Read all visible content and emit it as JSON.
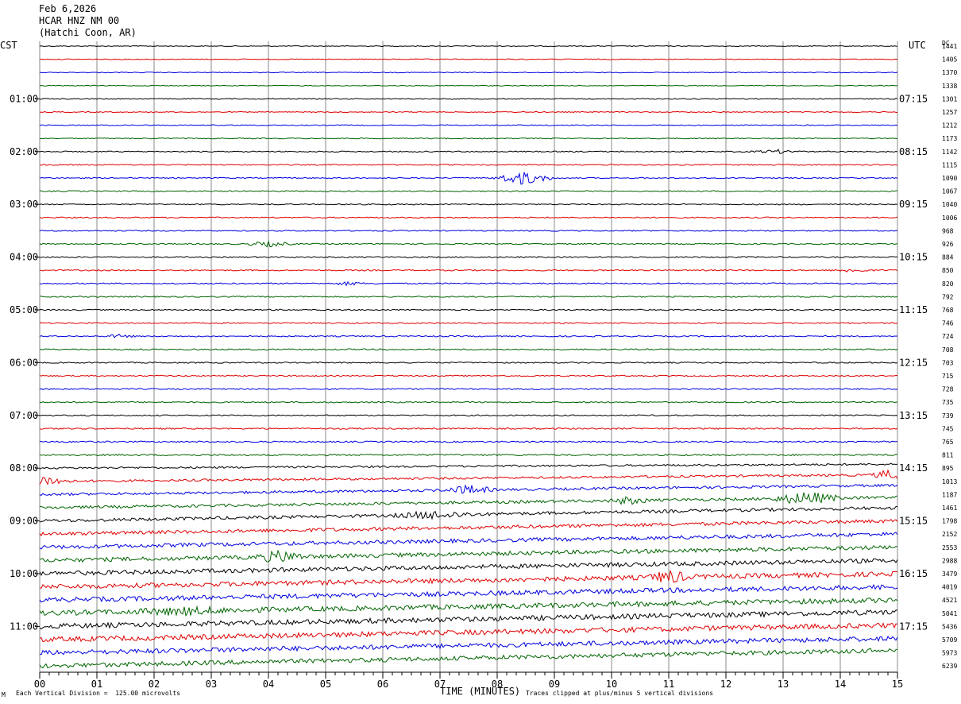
{
  "header": {
    "date": "Feb 6,2026",
    "station": "HCAR HNZ NM 00",
    "location": "(Hatchi Coon, AR)"
  },
  "left_tz": "CST",
  "right_tz": "UTC",
  "dc_label": "DC",
  "footer": {
    "scale": "Each Vertical Division =  125.00 microvolts",
    "clip": "Traces clipped at plus/minus 5 vertical divisions",
    "corner_mark": "M"
  },
  "chart_data": {
    "type": "line",
    "title": "HCAR HNZ NM 00",
    "xlabel": "TIME (MINUTES)",
    "ylabel": "",
    "x_ticks": [
      "00",
      "01",
      "02",
      "03",
      "04",
      "05",
      "06",
      "07",
      "08",
      "09",
      "10",
      "11",
      "12",
      "13",
      "14",
      "15"
    ],
    "xlim": [
      0,
      15
    ],
    "grid": true,
    "trace_minutes": 15,
    "trace_colors": [
      "#000000",
      "#e00000",
      "#0000e0",
      "#006400"
    ],
    "left_hour_labels": [
      "01:00",
      "02:00",
      "03:00",
      "04:00",
      "05:00",
      "06:00",
      "07:00",
      "08:00",
      "09:00",
      "10:00",
      "11:00"
    ],
    "right_hour_labels": [
      "07:15",
      "08:15",
      "09:15",
      "10:15",
      "11:15",
      "12:15",
      "13:15",
      "14:15",
      "15:15",
      "16:15",
      "17:15"
    ],
    "dc_offsets": [
      1441,
      1405,
      1370,
      1338,
      1301,
      1257,
      1212,
      1173,
      1142,
      1115,
      1090,
      1067,
      1040,
      1006,
      968,
      926,
      884,
      850,
      820,
      792,
      768,
      746,
      724,
      708,
      703,
      715,
      728,
      735,
      739,
      745,
      765,
      811,
      895,
      1013,
      1187,
      1461,
      1798,
      2152,
      2553,
      2988,
      3479,
      4019,
      4521,
      5041,
      5436,
      5709,
      5973,
      6239
    ],
    "noise_level": [
      0.5,
      0.5,
      0.5,
      0.5,
      0.6,
      0.6,
      0.6,
      0.6,
      0.7,
      0.7,
      0.7,
      0.7,
      0.7,
      0.7,
      0.7,
      0.8,
      0.8,
      0.8,
      0.8,
      0.8,
      0.8,
      0.8,
      0.8,
      0.8,
      0.8,
      0.8,
      0.8,
      0.8,
      0.8,
      0.9,
      0.9,
      1.0,
      1.2,
      1.4,
      1.6,
      1.8,
      2.0,
      2.2,
      2.4,
      2.6,
      2.8,
      3.0,
      3.0,
      3.2,
      3.2,
      3.2,
      3.0,
      2.8
    ],
    "drift_divisions": [
      0,
      0,
      0,
      0,
      0,
      0,
      0,
      0,
      0,
      0,
      0,
      0,
      0,
      0,
      0,
      0,
      0,
      0,
      0,
      0,
      0,
      0,
      0,
      0,
      0,
      0,
      0,
      0,
      0,
      0,
      0,
      0,
      -0.3,
      -0.5,
      -0.7,
      -0.8,
      -1.0,
      -1.0,
      -1.0,
      -1.0,
      -1.0,
      -1.0,
      -1.0,
      -1.0,
      -1.1,
      -1.1,
      -1.1,
      -1.2
    ],
    "events": [
      {
        "trace": 10,
        "minute": 8.45,
        "amplitude": 8,
        "duration": 0.6
      },
      {
        "trace": 8,
        "minute": 12.9,
        "amplitude": 2,
        "duration": 0.5
      },
      {
        "trace": 15,
        "minute": 4.0,
        "amplitude": 3,
        "duration": 0.5
      },
      {
        "trace": 18,
        "minute": 5.4,
        "amplitude": 2,
        "duration": 0.3
      },
      {
        "trace": 17,
        "minute": 14.2,
        "amplitude": 2,
        "duration": 0.4
      },
      {
        "trace": 22,
        "minute": 1.4,
        "amplitude": 2,
        "duration": 0.3
      },
      {
        "trace": 33,
        "minute": 0.1,
        "amplitude": 6,
        "duration": 0.5
      },
      {
        "trace": 33,
        "minute": 14.9,
        "amplitude": 6,
        "duration": 0.4
      },
      {
        "trace": 34,
        "minute": 7.5,
        "amplitude": 5,
        "duration": 0.5
      },
      {
        "trace": 35,
        "minute": 13.4,
        "amplitude": 7,
        "duration": 0.7
      },
      {
        "trace": 35,
        "minute": 10.3,
        "amplitude": 4,
        "duration": 0.4
      },
      {
        "trace": 36,
        "minute": 6.9,
        "amplitude": 4,
        "duration": 0.8
      },
      {
        "trace": 39,
        "minute": 4.2,
        "amplitude": 6,
        "duration": 0.5
      },
      {
        "trace": 41,
        "minute": 11.0,
        "amplitude": 7,
        "duration": 0.4
      },
      {
        "trace": 43,
        "minute": 2.5,
        "amplitude": 3,
        "duration": 1.0
      }
    ]
  }
}
